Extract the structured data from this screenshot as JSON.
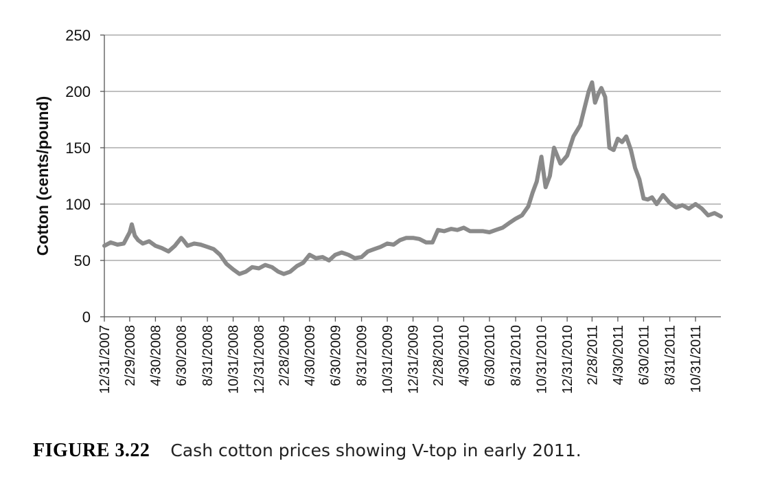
{
  "chart_data": {
    "type": "line",
    "title": "",
    "ylabel": "Cotton (cents/pound)",
    "xlabel": "",
    "ylim": [
      0,
      250
    ],
    "yticks": [
      0,
      50,
      100,
      150,
      200,
      250
    ],
    "grid": "horizontal",
    "legend": "none",
    "x_tick_labels": [
      "12/31/2007",
      "2/29/2008",
      "4/30/2008",
      "6/30/2008",
      "8/31/2008",
      "10/31/2008",
      "12/31/2008",
      "2/28/2009",
      "4/30/2009",
      "6/30/2009",
      "8/31/2009",
      "10/31/2009",
      "12/31/2009",
      "2/28/2010",
      "4/30/2010",
      "6/30/2010",
      "8/31/2010",
      "10/31/2010",
      "12/31/2010",
      "2/28/2011",
      "4/30/2011",
      "6/30/2011",
      "8/31/2011",
      "10/31/2011"
    ],
    "x_end": "12/30/2011",
    "line_color": "#8a8a8a",
    "series": [
      {
        "x": [
          "12/31/2007",
          "1/15/2008",
          "1/31/2008",
          "2/15/2008",
          "2/22/2008",
          "2/29/2008",
          "3/5/2008",
          "3/12/2008",
          "3/20/2008",
          "3/31/2008",
          "4/15/2008",
          "4/30/2008",
          "5/15/2008",
          "5/31/2008",
          "6/15/2008",
          "6/30/2008",
          "7/5/2008",
          "7/15/2008",
          "7/31/2008",
          "8/15/2008",
          "8/31/2008",
          "9/15/2008",
          "9/30/2008",
          "10/15/2008",
          "10/31/2008",
          "11/15/2008",
          "11/30/2008",
          "12/15/2008",
          "12/31/2008",
          "1/15/2009",
          "1/31/2009",
          "2/15/2009",
          "2/28/2009",
          "3/15/2009",
          "3/31/2009",
          "4/15/2009",
          "4/30/2009",
          "5/15/2009",
          "5/31/2009",
          "6/15/2009",
          "6/30/2009",
          "7/15/2009",
          "7/31/2009",
          "8/15/2009",
          "8/31/2009",
          "9/15/2009",
          "9/30/2009",
          "10/15/2009",
          "10/31/2009",
          "11/15/2009",
          "11/30/2009",
          "12/15/2009",
          "12/31/2009",
          "1/15/2010",
          "1/31/2010",
          "2/15/2010",
          "2/28/2010",
          "3/15/2010",
          "3/31/2010",
          "4/15/2010",
          "4/30/2010",
          "5/15/2010",
          "5/31/2010",
          "6/15/2010",
          "6/30/2010",
          "7/15/2010",
          "7/31/2010",
          "8/15/2010",
          "8/31/2010",
          "9/15/2010",
          "9/30/2010",
          "10/10/2010",
          "10/20/2010",
          "10/31/2010",
          "11/10/2010",
          "11/20/2010",
          "11/30/2010",
          "12/15/2010",
          "12/31/2010",
          "1/15/2011",
          "1/31/2011",
          "2/10/2011",
          "2/20/2011",
          "2/28/2011",
          "3/7/2011",
          "3/15/2011",
          "3/22/2011",
          "3/31/2011",
          "4/10/2011",
          "4/20/2011",
          "4/30/2011",
          "5/10/2011",
          "5/20/2011",
          "5/31/2011",
          "6/10/2011",
          "6/20/2011",
          "6/30/2011",
          "7/10/2011",
          "7/20/2011",
          "7/31/2011",
          "8/15/2011",
          "8/31/2011",
          "9/15/2011",
          "9/30/2011",
          "10/15/2011",
          "10/31/2011",
          "11/15/2011",
          "11/30/2011",
          "12/15/2011",
          "12/30/2011"
        ],
        "values": [
          63,
          66,
          64,
          65,
          70,
          75,
          82,
          72,
          68,
          65,
          67,
          63,
          61,
          58,
          63,
          70,
          68,
          63,
          65,
          64,
          62,
          60,
          55,
          47,
          42,
          38,
          40,
          44,
          43,
          46,
          44,
          40,
          38,
          40,
          45,
          48,
          55,
          52,
          53,
          50,
          55,
          57,
          55,
          52,
          53,
          58,
          60,
          62,
          65,
          64,
          68,
          70,
          70,
          69,
          66,
          66,
          77,
          76,
          78,
          77,
          79,
          76,
          76,
          76,
          75,
          77,
          79,
          83,
          87,
          90,
          98,
          110,
          120,
          142,
          115,
          125,
          150,
          136,
          143,
          160,
          170,
          185,
          200,
          208,
          190,
          198,
          203,
          195,
          150,
          148,
          158,
          155,
          160,
          148,
          132,
          122,
          105,
          104,
          106,
          100,
          108,
          101,
          97,
          99,
          96,
          100,
          96,
          90,
          92,
          89
        ]
      }
    ]
  },
  "figure": {
    "label": "FIGURE 3.22",
    "caption": "Cash cotton prices showing V-top in early 2011."
  }
}
